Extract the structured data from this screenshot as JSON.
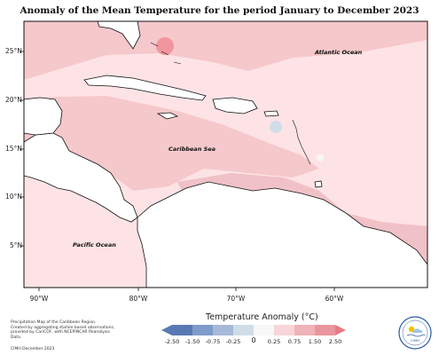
{
  "title": "Anomaly of the Mean Temperature for the period January to December 2023",
  "map": {
    "lat_ticks": [
      "25°N",
      "20°N",
      "15°N",
      "10°N",
      "5°N"
    ],
    "lon_ticks": [
      "90°W",
      "80°W",
      "70°W",
      "60°W"
    ],
    "labels": {
      "atlantic": "Atlantic Ocean",
      "caribbean": "Caribbean Sea",
      "pacific": "Pacific Ocean"
    },
    "colors": {
      "ocean_light": "#fde3e5",
      "anomaly_warm1": "#f5c8cc",
      "anomaly_warm2": "#e9a7ad",
      "anomaly_hot": "#f08a92",
      "anomaly_cool": "#cfdde9",
      "neutral": "#f7f7f7"
    }
  },
  "legend": {
    "title": "Temperature Anomaly (°C)",
    "ticks": [
      "-2.50",
      "-1.50",
      "-0.75",
      "-0.25",
      "0",
      "0.25",
      "0.75",
      "1.50",
      "2.50"
    ],
    "colors": [
      "#5a79b4",
      "#7f9bc9",
      "#a7b9d8",
      "#cfdde9",
      "#f7f7f7",
      "#f8d5d8",
      "#f0b3b9",
      "#ea969e",
      "#e77b86"
    ]
  },
  "footnote": {
    "line1": "Precipitation Map of the Caribbean Region.",
    "line2": "Created by aggregating station based observations,",
    "line3": "provided by CariCOF, with NCEP/NCAR Reanalysis Data.",
    "credit": "CIMH December 2023"
  },
  "logo": {
    "text": "CIMH"
  }
}
